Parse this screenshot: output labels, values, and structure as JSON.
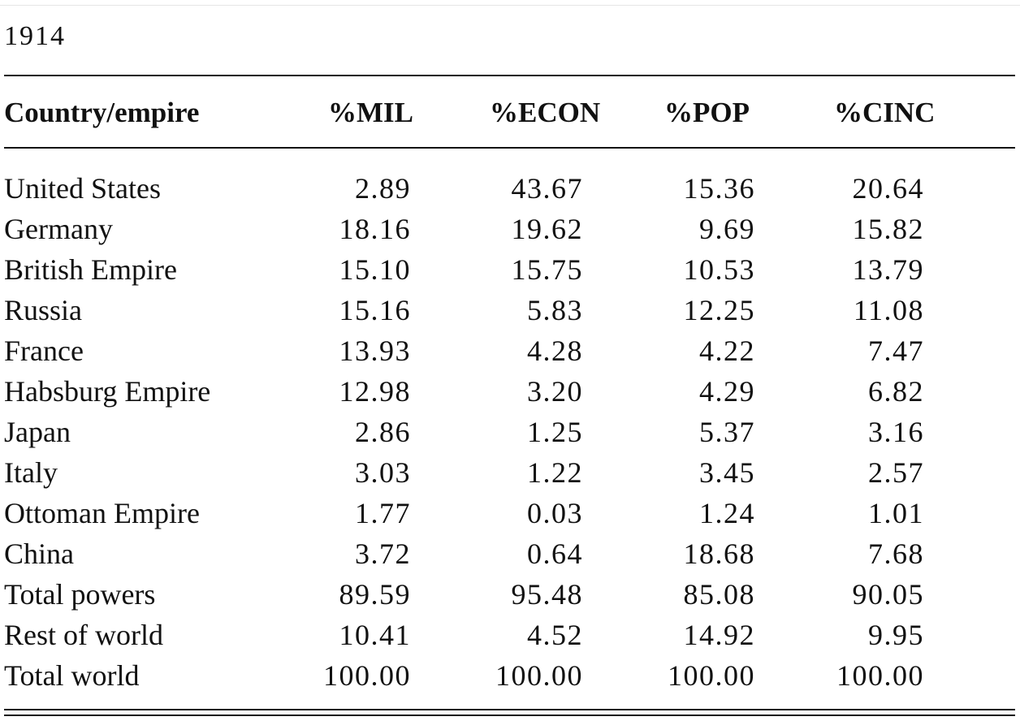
{
  "year": "1914",
  "table": {
    "headers": [
      "Country/empire",
      "%MIL",
      "%ECON",
      "%POP",
      "%CINC"
    ],
    "rows": [
      [
        "United States",
        "2.89",
        "43.67",
        "15.36",
        "20.64"
      ],
      [
        "Germany",
        "18.16",
        "19.62",
        "9.69",
        "15.82"
      ],
      [
        "British Empire",
        "15.10",
        "15.75",
        "10.53",
        "13.79"
      ],
      [
        "Russia",
        "15.16",
        "5.83",
        "12.25",
        "11.08"
      ],
      [
        "France",
        "13.93",
        "4.28",
        "4.22",
        "7.47"
      ],
      [
        "Habsburg Empire",
        "12.98",
        "3.20",
        "4.29",
        "6.82"
      ],
      [
        "Japan",
        "2.86",
        "1.25",
        "5.37",
        "3.16"
      ],
      [
        "Italy",
        "3.03",
        "1.22",
        "3.45",
        "2.57"
      ],
      [
        "Ottoman Empire",
        "1.77",
        "0.03",
        "1.24",
        "1.01"
      ],
      [
        "China",
        "3.72",
        "0.64",
        "18.68",
        "7.68"
      ],
      [
        "Total powers",
        "89.59",
        "95.48",
        "85.08",
        "90.05"
      ],
      [
        "Rest of world",
        "10.41",
        "4.52",
        "14.92",
        "9.95"
      ],
      [
        "Total world",
        "100.00",
        "100.00",
        "100.00",
        "100.00"
      ]
    ]
  }
}
